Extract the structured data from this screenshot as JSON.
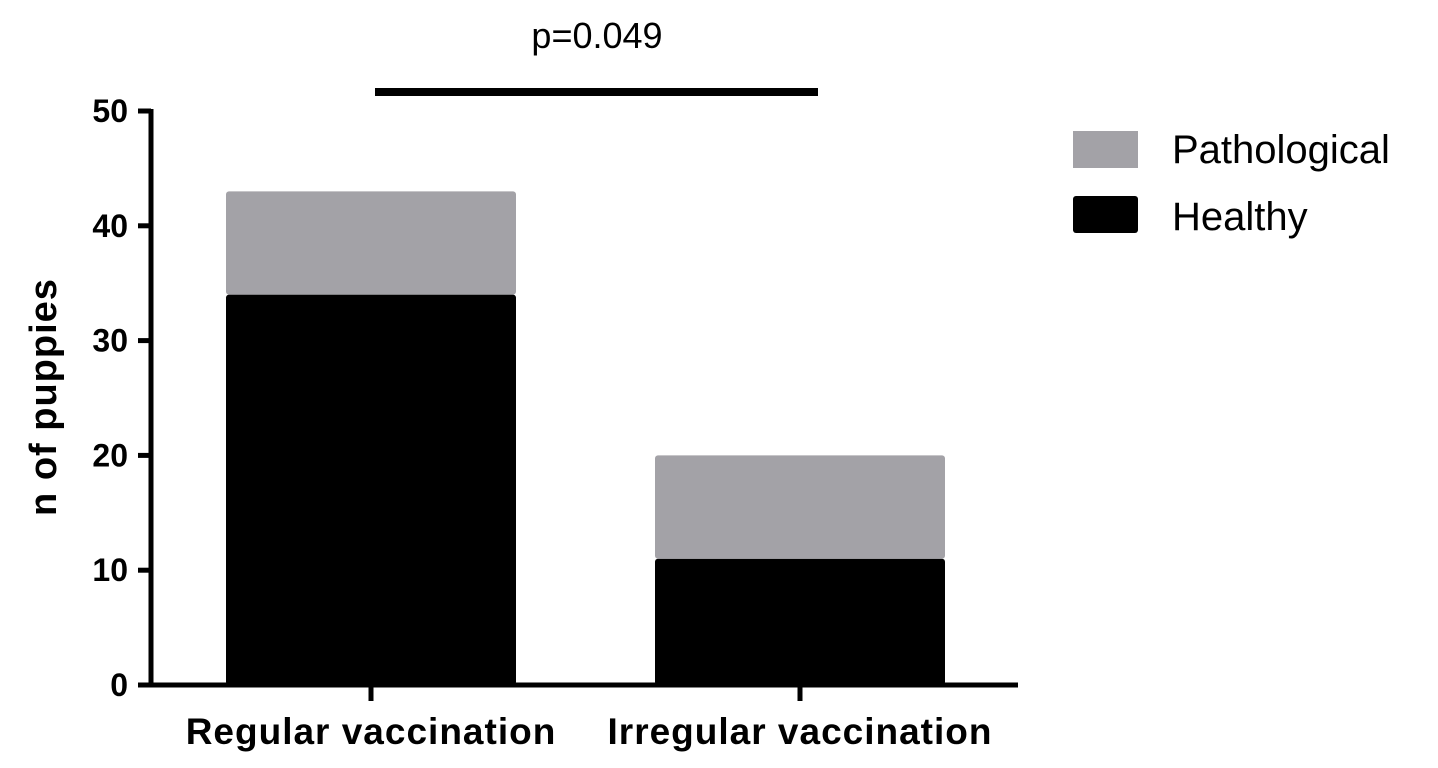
{
  "chart_data": {
    "type": "bar",
    "stacked": true,
    "categories": [
      "Regular vaccination",
      "Irregular vaccination"
    ],
    "series": [
      {
        "name": "Healthy",
        "values": [
          34,
          11
        ],
        "color": "#000000"
      },
      {
        "name": "Pathological",
        "values": [
          9,
          9
        ],
        "color": "#a3a2a7"
      }
    ],
    "title": "",
    "xlabel": "",
    "ylabel": "n of puppies",
    "ylim": [
      0,
      50
    ],
    "yticks": [
      "0",
      "10",
      "20",
      "30",
      "40",
      "50"
    ],
    "grid": false,
    "legend": {
      "placement": "top-right",
      "entries": [
        {
          "label": "Pathological",
          "color": "#a3a2a7"
        },
        {
          "label": "Healthy",
          "color": "#000000"
        }
      ]
    },
    "annotation": {
      "text": "p=0.049"
    }
  }
}
